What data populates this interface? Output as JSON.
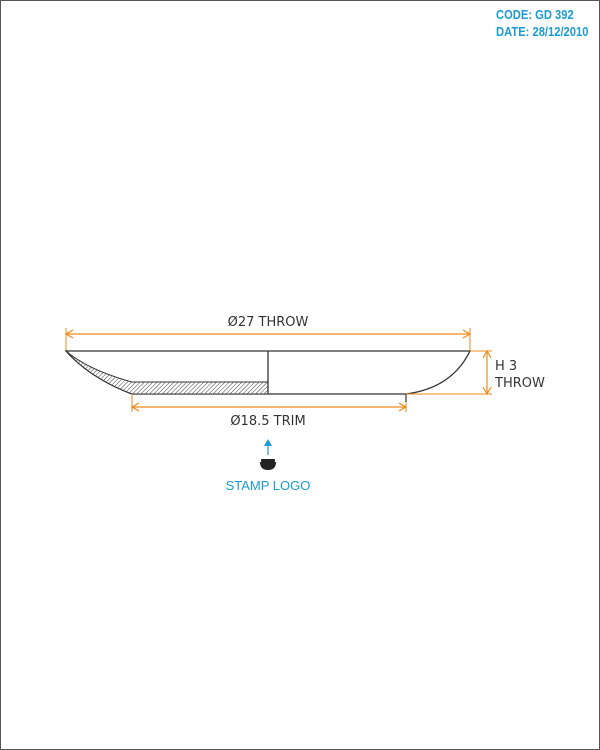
{
  "header": {
    "code": "CODE: GD 392",
    "date": "DATE: 28/12/2010"
  },
  "dimensions": {
    "throw_diameter": "Ø27 THROW",
    "height_line1": "H 3",
    "height_line2": "THROW",
    "trim_diameter": "Ø18.5 TRIM"
  },
  "stamp": {
    "label": "STAMP LOGO"
  },
  "colors": {
    "dimension_line": "#f08a1c",
    "accent": "#1a9bd6",
    "outline": "#333333"
  }
}
